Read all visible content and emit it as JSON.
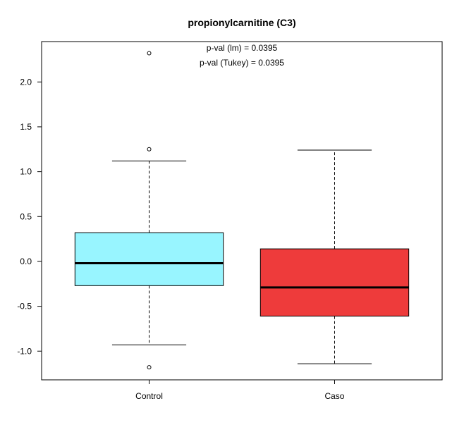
{
  "chart_data": {
    "type": "box",
    "title": "propionylcarnitine (C3)",
    "annotations": [
      "p-val (lm) = 0.0395",
      "p-val (Tukey) = 0.0395"
    ],
    "xlabel": "",
    "ylabel": "",
    "categories": [
      "Control",
      "Caso"
    ],
    "ylim": [
      -1.32,
      2.45
    ],
    "yticks": [
      -1.0,
      -0.5,
      0.0,
      0.5,
      1.0,
      1.5,
      2.0
    ],
    "ytick_labels": [
      "-1.0",
      "-0.5",
      "0.0",
      "0.5",
      "1.0",
      "1.5",
      "2.0"
    ],
    "grid": false,
    "boxes": [
      {
        "category": "Control",
        "whisker_low": -0.93,
        "q1": -0.27,
        "median": -0.02,
        "q3": 0.32,
        "whisker_high": 1.12,
        "outliers": [
          2.32,
          1.25,
          -1.18
        ],
        "color": "#98F5FF"
      },
      {
        "category": "Caso",
        "whisker_low": -1.14,
        "q1": -0.61,
        "median": -0.29,
        "q3": 0.14,
        "whisker_high": 1.24,
        "outliers": [],
        "color": "#EE3B3B"
      }
    ]
  }
}
